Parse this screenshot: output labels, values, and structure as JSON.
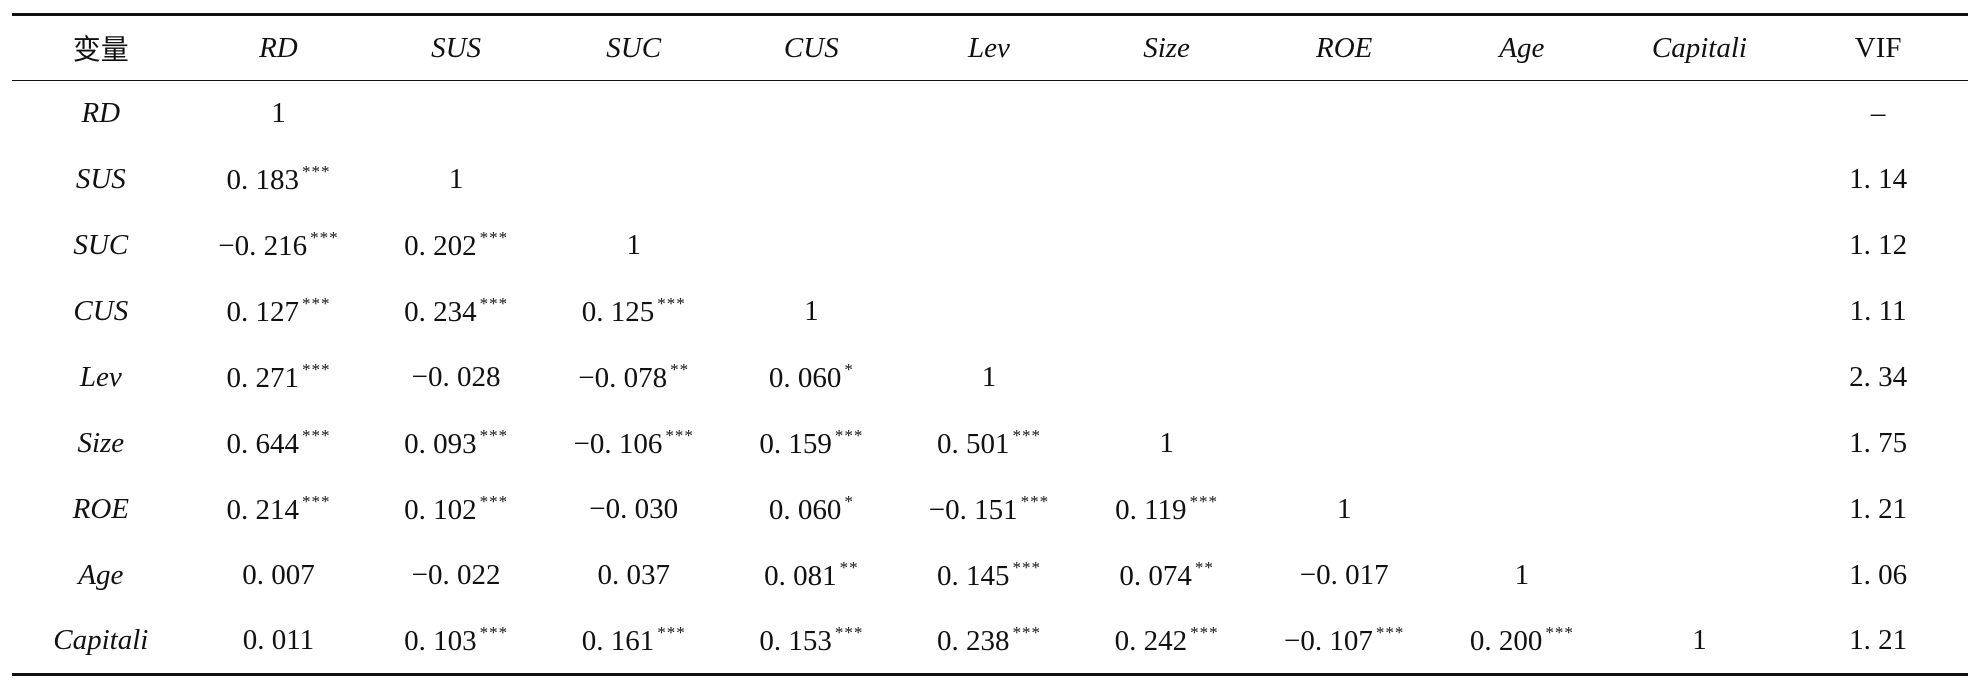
{
  "header": {
    "columns": [
      {
        "label": "变量",
        "italic": false
      },
      {
        "label": "RD",
        "italic": true
      },
      {
        "label": "SUS",
        "italic": true
      },
      {
        "label": "SUC",
        "italic": true
      },
      {
        "label": "CUS",
        "italic": true
      },
      {
        "label": "Lev",
        "italic": true
      },
      {
        "label": "Size",
        "italic": true
      },
      {
        "label": "ROE",
        "italic": true
      },
      {
        "label": "Age",
        "italic": true
      },
      {
        "label": "Capitali",
        "italic": true
      },
      {
        "label": "VIF",
        "italic": false
      }
    ]
  },
  "rows": [
    {
      "variable": "RD",
      "cells": [
        {
          "v": "1",
          "s": ""
        }
      ],
      "vif": "–"
    },
    {
      "variable": "SUS",
      "cells": [
        {
          "v": "0. 183",
          "s": "***"
        },
        {
          "v": "1",
          "s": ""
        }
      ],
      "vif": "1. 14"
    },
    {
      "variable": "SUC",
      "cells": [
        {
          "v": "−0. 216",
          "s": "***"
        },
        {
          "v": "0. 202",
          "s": "***"
        },
        {
          "v": "1",
          "s": ""
        }
      ],
      "vif": "1. 12"
    },
    {
      "variable": "CUS",
      "cells": [
        {
          "v": "0. 127",
          "s": "***"
        },
        {
          "v": "0. 234",
          "s": "***"
        },
        {
          "v": "0. 125",
          "s": "***"
        },
        {
          "v": "1",
          "s": ""
        }
      ],
      "vif": "1. 11"
    },
    {
      "variable": "Lev",
      "cells": [
        {
          "v": "0. 271",
          "s": "***"
        },
        {
          "v": "−0. 028",
          "s": ""
        },
        {
          "v": "−0. 078",
          "s": "**"
        },
        {
          "v": "0. 060",
          "s": "*"
        },
        {
          "v": "1",
          "s": ""
        }
      ],
      "vif": "2. 34"
    },
    {
      "variable": "Size",
      "cells": [
        {
          "v": "0. 644",
          "s": "***"
        },
        {
          "v": "0. 093",
          "s": "***"
        },
        {
          "v": "−0. 106",
          "s": "***"
        },
        {
          "v": "0. 159",
          "s": "***"
        },
        {
          "v": "0. 501",
          "s": "***"
        },
        {
          "v": "1",
          "s": ""
        }
      ],
      "vif": "1. 75"
    },
    {
      "variable": "ROE",
      "cells": [
        {
          "v": "0. 214",
          "s": "***"
        },
        {
          "v": "0. 102",
          "s": "***"
        },
        {
          "v": "−0. 030",
          "s": ""
        },
        {
          "v": "0. 060",
          "s": "*"
        },
        {
          "v": "−0. 151",
          "s": "***"
        },
        {
          "v": "0. 119",
          "s": "***"
        },
        {
          "v": "1",
          "s": ""
        }
      ],
      "vif": "1. 21"
    },
    {
      "variable": "Age",
      "cells": [
        {
          "v": "0. 007",
          "s": ""
        },
        {
          "v": "−0. 022",
          "s": ""
        },
        {
          "v": "0. 037",
          "s": ""
        },
        {
          "v": "0. 081",
          "s": "**"
        },
        {
          "v": "0. 145",
          "s": "***"
        },
        {
          "v": "0. 074",
          "s": "**"
        },
        {
          "v": "−0. 017",
          "s": ""
        },
        {
          "v": "1",
          "s": ""
        }
      ],
      "vif": "1. 06"
    },
    {
      "variable": "Capitali",
      "cells": [
        {
          "v": "0. 011",
          "s": ""
        },
        {
          "v": "0. 103",
          "s": "***"
        },
        {
          "v": "0. 161",
          "s": "***"
        },
        {
          "v": "0. 153",
          "s": "***"
        },
        {
          "v": "0. 238",
          "s": "***"
        },
        {
          "v": "0. 242",
          "s": "***"
        },
        {
          "v": "−0. 107",
          "s": "***"
        },
        {
          "v": "0. 200",
          "s": "***"
        },
        {
          "v": "1",
          "s": ""
        }
      ],
      "vif": "1. 21"
    }
  ]
}
